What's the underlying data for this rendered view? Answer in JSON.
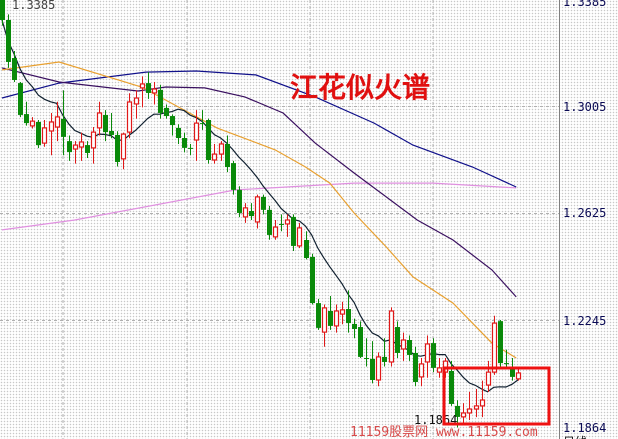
{
  "chart_data": {
    "type": "candlestick",
    "title": "江花似火谱",
    "watermark": "11159股票网 www.11159.com",
    "period_label": "日线",
    "high_label": "1.3385",
    "low_label": "1.1864",
    "y_ticks": [
      "1.3385",
      "1.3005",
      "1.2625",
      "1.2245",
      "1.1864"
    ],
    "ylim": [
      1.1864,
      1.3385
    ],
    "grid": true,
    "colors": {
      "up": "#e01818",
      "down": "#0a8a0a",
      "ma_short": "#102030",
      "ma_orange": "#e8a030",
      "ma_purple": "#3a1060",
      "ma_blue": "#10108a",
      "ma_pink": "#e090e0",
      "highlight_box": "#ee1111"
    },
    "candles_ohlc": [
      [
        1.3381,
        1.3385,
        1.329,
        1.331
      ],
      [
        1.331,
        1.333,
        1.314,
        1.3161
      ],
      [
        1.3175,
        1.32,
        1.309,
        1.3097
      ],
      [
        1.3086,
        1.309,
        1.2965,
        1.2973
      ],
      [
        1.2976,
        1.302,
        1.2935,
        1.2944
      ],
      [
        1.2934,
        1.2965,
        1.2925,
        1.2951
      ],
      [
        1.2948,
        1.2955,
        1.2855,
        1.2866
      ],
      [
        1.2873,
        1.2955,
        1.286,
        1.2927
      ],
      [
        1.2916,
        1.298,
        1.283,
        1.2948
      ],
      [
        1.293,
        1.302,
        1.288,
        1.2966
      ],
      [
        1.2959,
        1.306,
        1.283,
        1.2895
      ],
      [
        1.288,
        1.29,
        1.281,
        1.2841
      ],
      [
        1.2852,
        1.288,
        1.28,
        1.2866
      ],
      [
        1.2859,
        1.291,
        1.281,
        1.2877
      ],
      [
        1.2866,
        1.288,
        1.282,
        1.2838
      ],
      [
        1.2856,
        1.293,
        1.28,
        1.2912
      ],
      [
        1.2927,
        1.302,
        1.29,
        1.298
      ],
      [
        1.2973,
        1.299,
        1.288,
        1.2912
      ],
      [
        1.2916,
        1.298,
        1.289,
        1.2902
      ],
      [
        1.2902,
        1.2915,
        1.279,
        1.2806
      ],
      [
        1.2817,
        1.291,
        1.278,
        1.2905
      ],
      [
        1.2912,
        1.305,
        1.289,
        1.3019
      ],
      [
        1.3012,
        1.306,
        1.296,
        1.3033
      ],
      [
        1.3069,
        1.311,
        1.3,
        1.3083
      ],
      [
        1.3086,
        1.3125,
        1.303,
        1.3051
      ],
      [
        1.3051,
        1.309,
        1.301,
        1.3065
      ],
      [
        1.3062,
        1.308,
        1.296,
        1.298
      ],
      [
        1.2998,
        1.301,
        1.296,
        1.2969
      ],
      [
        1.2969,
        1.2975,
        1.29,
        1.2937
      ],
      [
        1.2927,
        1.294,
        1.287,
        1.2891
      ],
      [
        1.2891,
        1.291,
        1.284,
        1.2856
      ],
      [
        1.2856,
        1.287,
        1.283,
        1.2856
      ],
      [
        1.2884,
        1.299,
        1.281,
        1.2944
      ],
      [
        1.2944,
        1.299,
        1.292,
        1.2944
      ],
      [
        1.2955,
        1.296,
        1.28,
        1.2813
      ],
      [
        1.2813,
        1.287,
        1.28,
        1.2834
      ],
      [
        1.2834,
        1.288,
        1.281,
        1.287
      ],
      [
        1.287,
        1.29,
        1.277,
        1.2788
      ],
      [
        1.2802,
        1.281,
        1.269,
        1.2707
      ],
      [
        1.2707,
        1.272,
        1.261,
        1.2625
      ],
      [
        1.2611,
        1.266,
        1.259,
        1.2643
      ],
      [
        1.2632,
        1.266,
        1.26,
        1.2614
      ],
      [
        1.2593,
        1.269,
        1.257,
        1.2682
      ],
      [
        1.2682,
        1.269,
        1.262,
        1.2636
      ],
      [
        1.2636,
        1.265,
        1.253,
        1.2547
      ],
      [
        1.254,
        1.26,
        1.253,
        1.2575
      ],
      [
        1.2586,
        1.262,
        1.256,
        1.2586
      ],
      [
        1.2586,
        1.262,
        1.254,
        1.26
      ],
      [
        1.2611,
        1.262,
        1.249,
        1.2508
      ],
      [
        1.2508,
        1.259,
        1.25,
        1.2572
      ],
      [
        1.2529,
        1.256,
        1.246,
        1.2465
      ],
      [
        1.2469,
        1.248,
        1.23,
        1.2305
      ],
      [
        1.2305,
        1.232,
        1.221,
        1.2217
      ],
      [
        1.2202,
        1.23,
        1.215,
        1.2288
      ],
      [
        1.2277,
        1.233,
        1.221,
        1.2224
      ],
      [
        1.2224,
        1.23,
        1.22,
        1.2277
      ],
      [
        1.2266,
        1.231,
        1.223,
        1.2281
      ],
      [
        1.2284,
        1.235,
        1.22,
        1.2234
      ],
      [
        1.2231,
        1.225,
        1.218,
        1.2213
      ],
      [
        1.222,
        1.224,
        1.211,
        1.2114
      ],
      [
        1.211,
        1.218,
        1.208,
        1.211
      ],
      [
        1.2107,
        1.217,
        1.202,
        1.2032
      ],
      [
        1.2032,
        1.213,
        1.201,
        1.2114
      ],
      [
        1.2114,
        1.218,
        1.208,
        1.2096
      ],
      [
        1.2096,
        1.229,
        1.208,
        1.2277
      ],
      [
        1.222,
        1.224,
        1.211,
        1.2128
      ],
      [
        1.2142,
        1.22,
        1.21,
        1.2174
      ],
      [
        1.2174,
        1.219,
        1.21,
        1.2121
      ],
      [
        1.2128,
        1.215,
        1.201,
        1.2025
      ],
      [
        1.2043,
        1.211,
        1.201,
        1.2089
      ],
      [
        1.2096,
        1.219,
        1.204,
        1.216
      ],
      [
        1.2163,
        1.218,
        1.206,
        1.2075
      ],
      [
        1.206,
        1.211,
        1.204,
        1.2075
      ],
      [
        1.206,
        1.211,
        1.204,
        1.2099
      ],
      [
        1.2064,
        1.21,
        1.194,
        1.1947
      ],
      [
        1.194,
        1.196,
        1.1864,
        1.1901
      ],
      [
        1.1901,
        1.195,
        1.188,
        1.1915
      ],
      [
        1.1915,
        1.199,
        1.189,
        1.1929
      ],
      [
        1.1929,
        1.2,
        1.19,
        1.194
      ],
      [
        1.194,
        1.203,
        1.19,
        1.1961
      ],
      [
        1.2014,
        1.21,
        1.199,
        1.206
      ],
      [
        1.206,
        1.226,
        1.205,
        1.2234
      ],
      [
        1.2241,
        1.2245,
        1.208,
        1.2092
      ],
      [
        1.2092,
        1.214,
        1.207,
        1.2092
      ],
      [
        1.2078,
        1.211,
        1.203,
        1.2043
      ],
      [
        1.2036,
        1.208,
        1.203,
        1.2057
      ]
    ],
    "moving_averages": {
      "orange": [
        [
          0,
          1.3133
        ],
        [
          9.4,
          1.3161
        ],
        [
          23,
          1.3072
        ],
        [
          35.4,
          1.2927
        ],
        [
          45,
          1.2849
        ],
        [
          50,
          1.2788
        ],
        [
          54,
          1.2731
        ],
        [
          58,
          1.2625
        ],
        [
          63.3,
          1.2504
        ],
        [
          67.7,
          1.2398
        ],
        [
          74.3,
          1.2305
        ],
        [
          80.7,
          1.2163
        ],
        [
          84.7,
          1.211
        ]
      ],
      "purple": [
        [
          0,
          1.314
        ],
        [
          9.4,
          1.309
        ],
        [
          22.4,
          1.3058
        ],
        [
          27,
          1.3072
        ],
        [
          33.4,
          1.3069
        ],
        [
          40,
          1.3037
        ],
        [
          46.3,
          1.298
        ],
        [
          51.6,
          1.2873
        ],
        [
          58,
          1.2767
        ],
        [
          68.4,
          1.26
        ],
        [
          74.3,
          1.2529
        ],
        [
          80.7,
          1.2423
        ],
        [
          84.7,
          1.2327
        ]
      ],
      "blue": [
        [
          0,
          1.3033
        ],
        [
          9.4,
          1.3086
        ],
        [
          23.7,
          1.3125
        ],
        [
          32,
          1.3129
        ],
        [
          41.8,
          1.3115
        ],
        [
          51.6,
          1.3037
        ],
        [
          61.3,
          1.2944
        ],
        [
          67.7,
          1.2866
        ],
        [
          77.5,
          1.2788
        ],
        [
          84.7,
          1.2717
        ]
      ],
      "pink": [
        [
          0,
          1.2565
        ],
        [
          12,
          1.26
        ],
        [
          38.5,
          1.2707
        ],
        [
          58,
          1.2731
        ],
        [
          71,
          1.2731
        ],
        [
          84.7,
          1.2714
        ]
      ]
    }
  }
}
